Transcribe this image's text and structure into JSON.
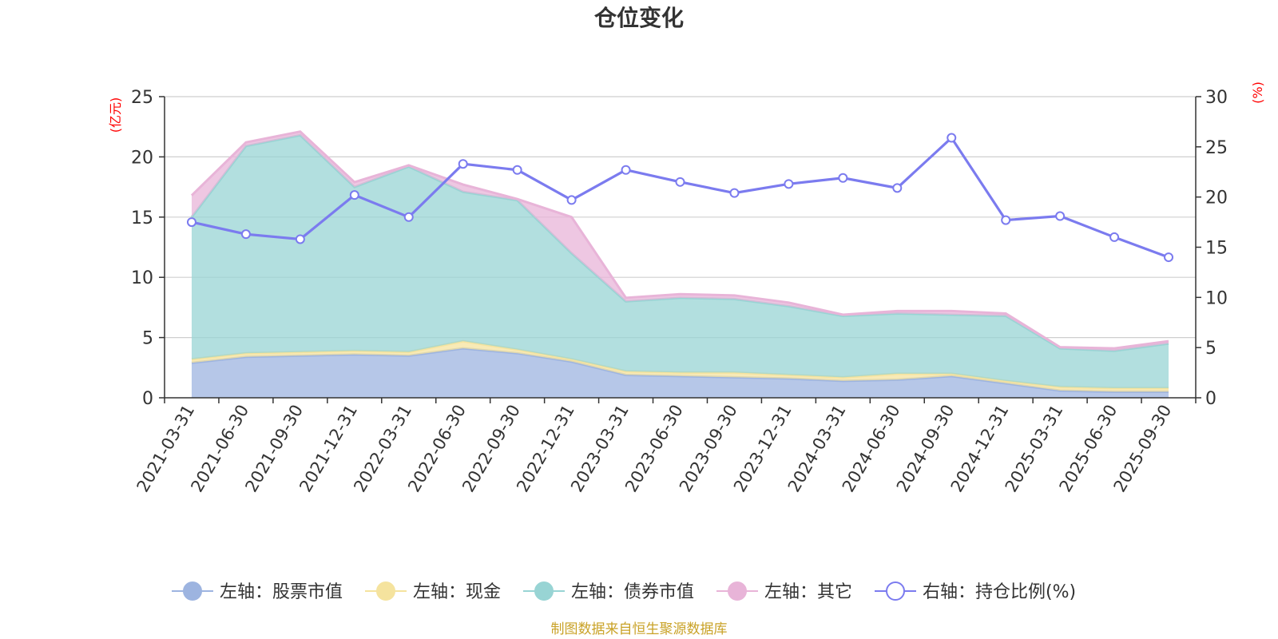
{
  "chart_data": {
    "type": "area",
    "title": "仓位变化",
    "categories": [
      "2021-03-31",
      "2021-06-30",
      "2021-09-30",
      "2021-12-31",
      "2022-03-31",
      "2022-06-30",
      "2022-09-30",
      "2022-12-31",
      "2023-03-31",
      "2023-06-30",
      "2023-09-30",
      "2023-12-31",
      "2024-03-31",
      "2024-06-30",
      "2024-09-30",
      "2024-12-31",
      "2025-03-31",
      "2025-06-30",
      "2025-09-30"
    ],
    "left_axis": {
      "unit": "(亿元)",
      "ylim": [
        0,
        25
      ],
      "ticks": [
        "0",
        "5",
        "10",
        "15",
        "20",
        "25"
      ]
    },
    "right_axis": {
      "unit": "(%)",
      "ylim": [
        0,
        30
      ],
      "ticks": [
        "0",
        "5",
        "10",
        "15",
        "20",
        "25",
        "30"
      ]
    },
    "stacked_series": [
      {
        "name": "左轴：股票市值",
        "axis": "left",
        "color": "#9db4e0",
        "values": [
          2.9,
          3.4,
          3.5,
          3.6,
          3.5,
          4.1,
          3.7,
          3.0,
          1.9,
          1.8,
          1.7,
          1.6,
          1.4,
          1.5,
          1.8,
          1.2,
          0.6,
          0.5,
          0.5
        ]
      },
      {
        "name": "左轴：现金",
        "axis": "left",
        "color": "#f5e39e",
        "values": [
          0.3,
          0.3,
          0.3,
          0.3,
          0.3,
          0.6,
          0.3,
          0.2,
          0.3,
          0.3,
          0.4,
          0.3,
          0.3,
          0.5,
          0.2,
          0.2,
          0.3,
          0.3,
          0.3
        ]
      },
      {
        "name": "左轴：债券市值",
        "axis": "left",
        "color": "#98d4d4",
        "values": [
          11.8,
          17.2,
          18.0,
          13.6,
          15.4,
          12.4,
          12.4,
          8.8,
          5.8,
          6.2,
          6.1,
          5.7,
          5.1,
          5.0,
          4.9,
          5.4,
          3.2,
          3.1,
          3.7
        ]
      },
      {
        "name": "左轴：其它",
        "axis": "left",
        "color": "#e8b4d8",
        "values": [
          1.8,
          0.3,
          0.3,
          0.4,
          0.1,
          0.6,
          0.1,
          3.0,
          0.3,
          0.3,
          0.3,
          0.3,
          0.1,
          0.2,
          0.3,
          0.2,
          0.1,
          0.2,
          0.2
        ]
      }
    ],
    "line_series": {
      "name": "右轴：持仓比例(%)",
      "axis": "right",
      "color": "#7b7bef",
      "values": [
        17.5,
        16.3,
        15.8,
        20.2,
        18.0,
        23.3,
        22.7,
        19.7,
        22.7,
        21.5,
        20.4,
        21.3,
        21.9,
        20.9,
        25.9,
        17.7,
        18.1,
        16.0,
        14.0
      ]
    },
    "legend_position": "bottom",
    "grid": true
  },
  "source_note": "制图数据来自恒生聚源数据库"
}
